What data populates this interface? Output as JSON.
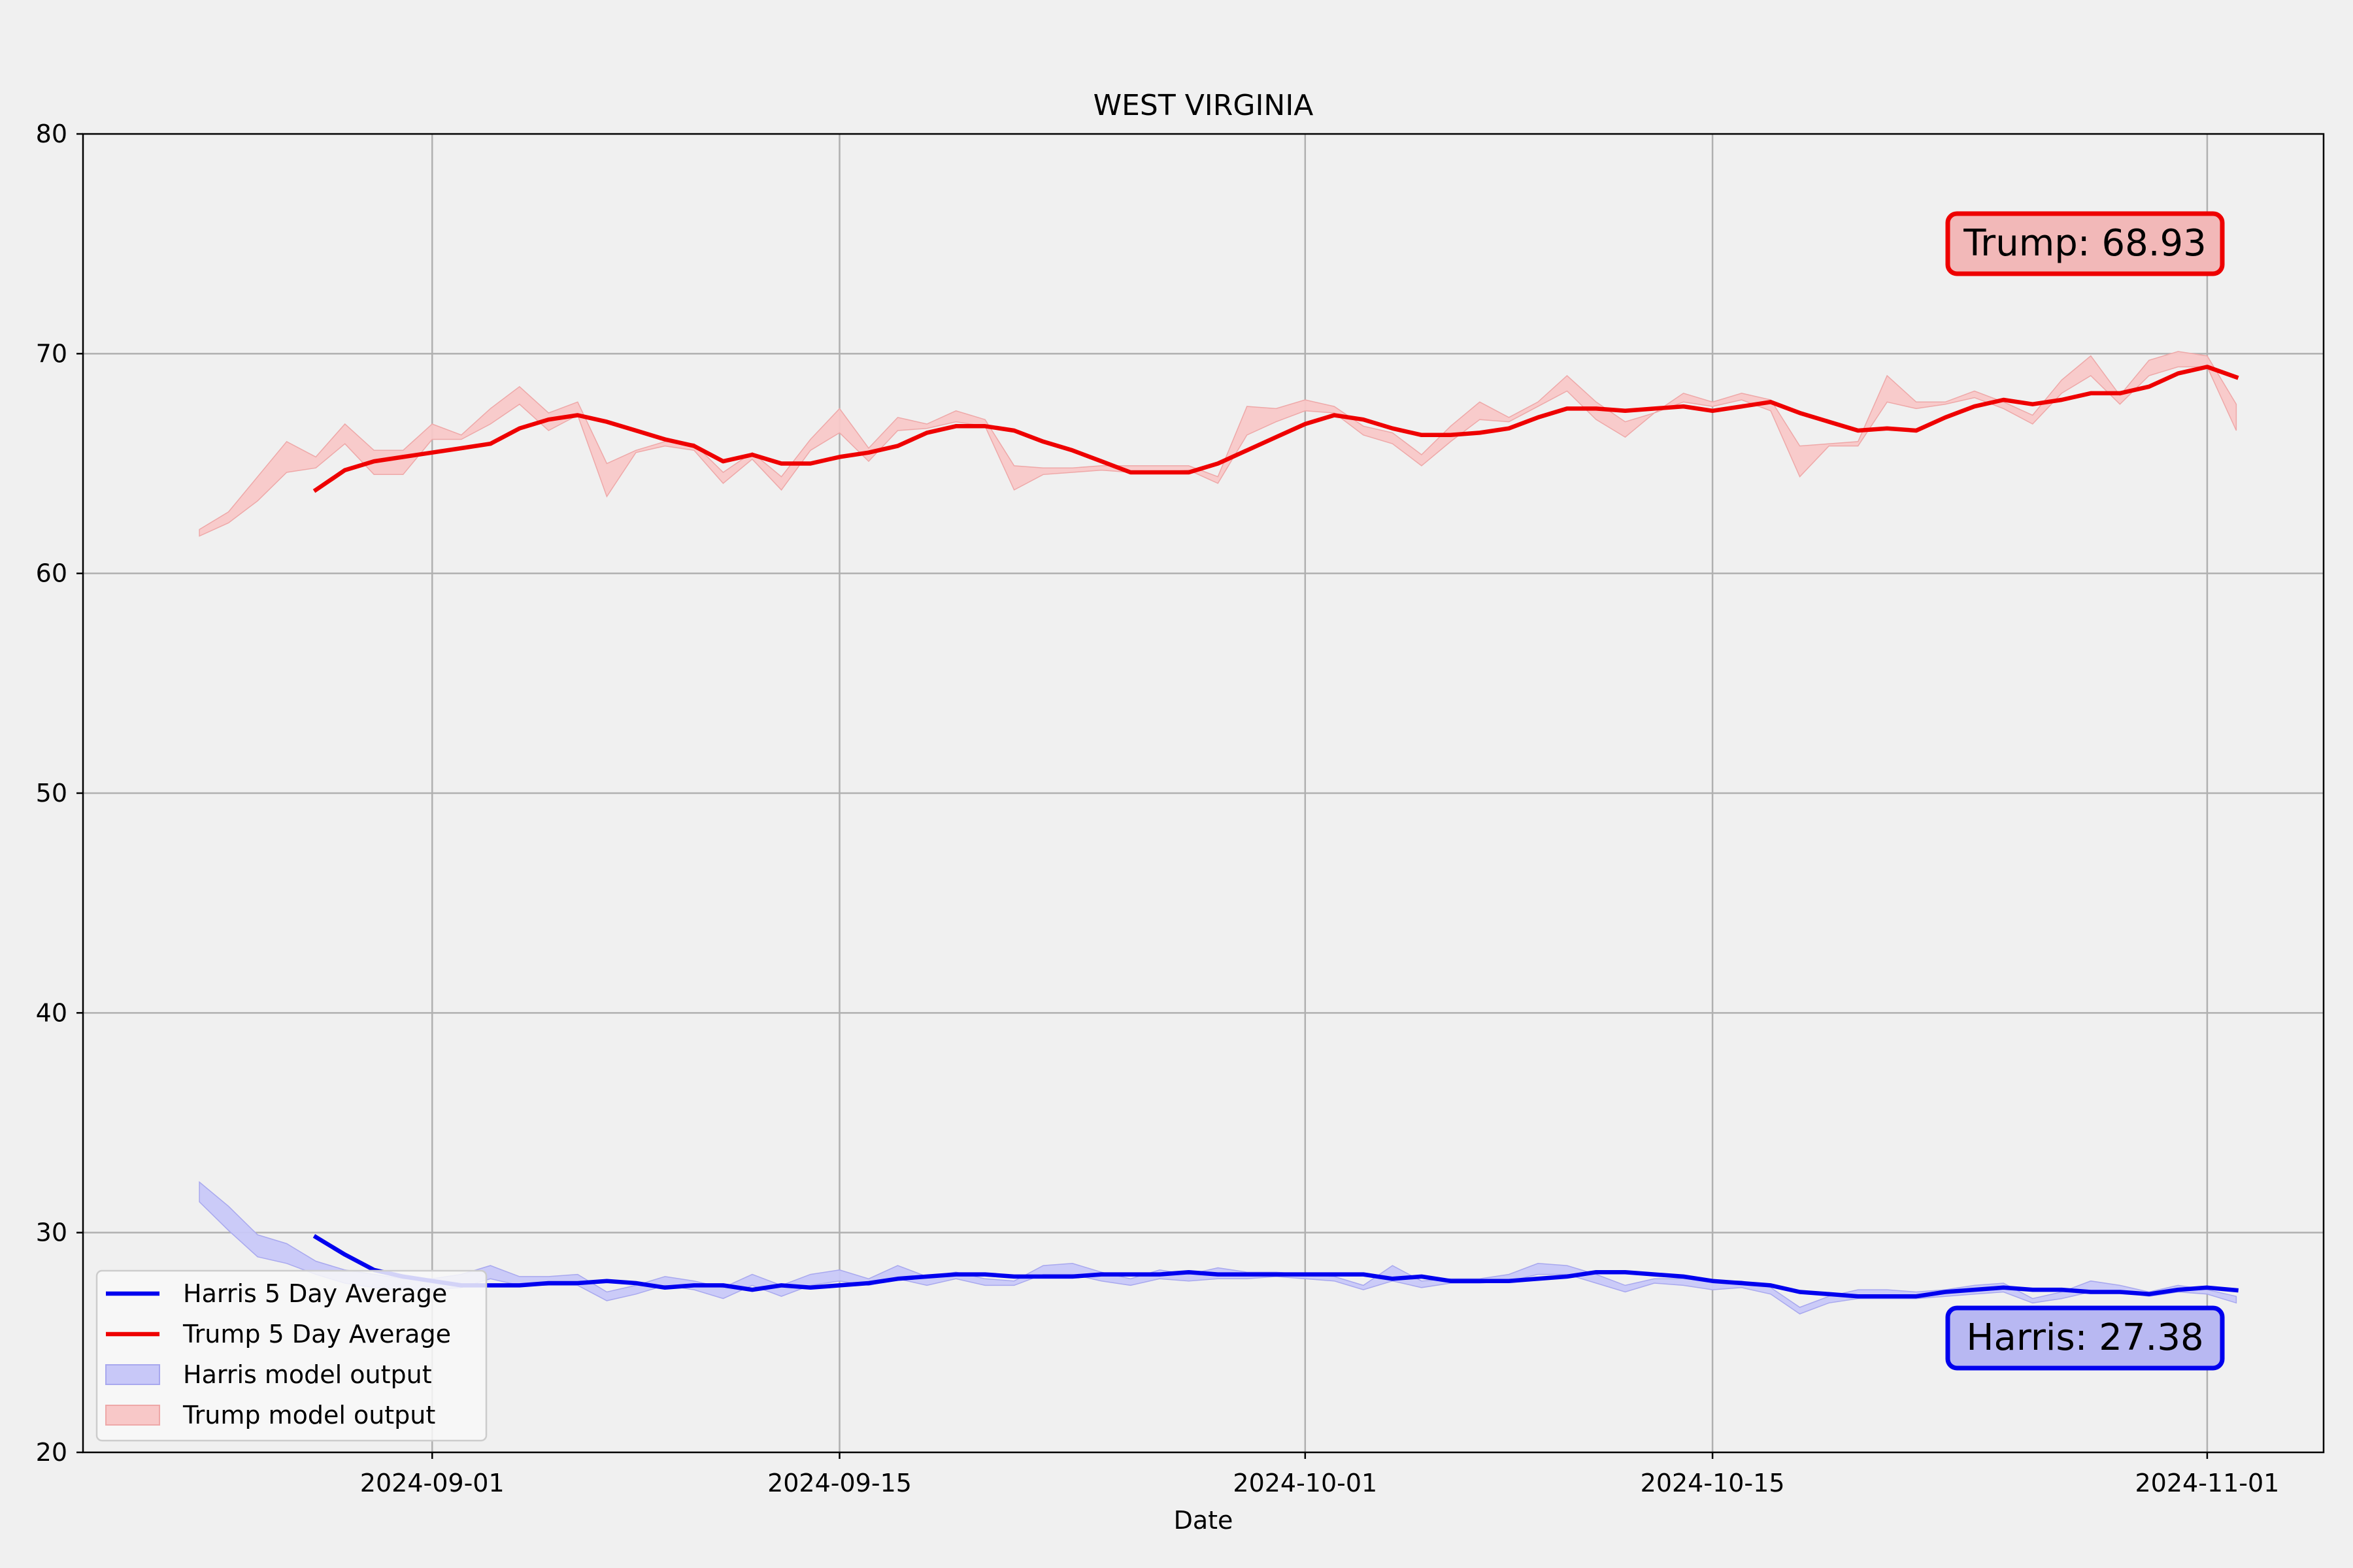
{
  "chart_data": {
    "type": "line",
    "title": "WEST VIRGINIA",
    "xlabel": "Date",
    "ylabel": "",
    "ylim": [
      20,
      80
    ],
    "xlim": [
      "2024-08-20",
      "2024-11-05"
    ],
    "x_ticks": [
      "2024-09-01",
      "2024-09-15",
      "2024-10-01",
      "2024-10-15",
      "2024-11-01"
    ],
    "y_ticks": [
      20,
      30,
      40,
      50,
      60,
      70,
      80
    ],
    "grid": true,
    "legend_position": "lower-left",
    "legend": [
      {
        "label": "Harris 5 Day Average",
        "kind": "line",
        "color": "#0000ee"
      },
      {
        "label": "Trump 5 Day Average",
        "kind": "line",
        "color": "#ee0000"
      },
      {
        "label": "Harris model output",
        "kind": "band",
        "color": "#c8c8f8"
      },
      {
        "label": "Trump model output",
        "kind": "band",
        "color": "#f8c8c8"
      }
    ],
    "annotations": [
      {
        "text": "Trump: 68.93",
        "series": "Trump 5 Day Average",
        "value": 68.93,
        "edge": "#ee0000",
        "fill": "#f2b8b8"
      },
      {
        "text": "Harris: 27.38",
        "series": "Harris 5 Day Average",
        "value": 27.38,
        "edge": "#0000ee",
        "fill": "#b8b8f2"
      }
    ],
    "series": [
      {
        "name": "Harris 5 Day Average",
        "kind": "line",
        "color": "#0000ee",
        "x": [
          "2024-08-28",
          "2024-08-29",
          "2024-08-30",
          "2024-08-31",
          "2024-09-01",
          "2024-09-02",
          "2024-09-03",
          "2024-09-04",
          "2024-09-05",
          "2024-09-06",
          "2024-09-07",
          "2024-09-08",
          "2024-09-09",
          "2024-09-10",
          "2024-09-11",
          "2024-09-12",
          "2024-09-13",
          "2024-09-14",
          "2024-09-15",
          "2024-09-16",
          "2024-09-17",
          "2024-09-18",
          "2024-09-19",
          "2024-09-20",
          "2024-09-21",
          "2024-09-22",
          "2024-09-23",
          "2024-09-24",
          "2024-09-25",
          "2024-09-26",
          "2024-09-27",
          "2024-09-28",
          "2024-09-29",
          "2024-09-30",
          "2024-10-01",
          "2024-10-02",
          "2024-10-03",
          "2024-10-04",
          "2024-10-05",
          "2024-10-06",
          "2024-10-07",
          "2024-10-08",
          "2024-10-09",
          "2024-10-10",
          "2024-10-11",
          "2024-10-12",
          "2024-10-13",
          "2024-10-14",
          "2024-10-15",
          "2024-10-16",
          "2024-10-17",
          "2024-10-18",
          "2024-10-19",
          "2024-10-20",
          "2024-10-21",
          "2024-10-22",
          "2024-10-23",
          "2024-10-24",
          "2024-10-25",
          "2024-10-26",
          "2024-10-27",
          "2024-10-28",
          "2024-10-29",
          "2024-10-30",
          "2024-10-31",
          "2024-11-01",
          "2024-11-02"
        ],
        "y": [
          29.8,
          29.0,
          28.3,
          28.0,
          27.8,
          27.6,
          27.6,
          27.6,
          27.7,
          27.7,
          27.8,
          27.7,
          27.5,
          27.6,
          27.6,
          27.4,
          27.6,
          27.5,
          27.6,
          27.7,
          27.9,
          28.0,
          28.1,
          28.1,
          28.0,
          28.0,
          28.0,
          28.1,
          28.1,
          28.1,
          28.2,
          28.1,
          28.1,
          28.1,
          28.1,
          28.1,
          28.1,
          27.9,
          28.0,
          27.8,
          27.8,
          27.8,
          27.9,
          28.0,
          28.2,
          28.2,
          28.1,
          28.0,
          27.8,
          27.7,
          27.6,
          27.3,
          27.2,
          27.1,
          27.1,
          27.1,
          27.3,
          27.4,
          27.5,
          27.4,
          27.4,
          27.3,
          27.3,
          27.2,
          27.4,
          27.5,
          27.38
        ]
      },
      {
        "name": "Trump 5 Day Average",
        "kind": "line",
        "color": "#ee0000",
        "x": [
          "2024-08-28",
          "2024-08-29",
          "2024-08-30",
          "2024-08-31",
          "2024-09-01",
          "2024-09-02",
          "2024-09-03",
          "2024-09-04",
          "2024-09-05",
          "2024-09-06",
          "2024-09-07",
          "2024-09-08",
          "2024-09-09",
          "2024-09-10",
          "2024-09-11",
          "2024-09-12",
          "2024-09-13",
          "2024-09-14",
          "2024-09-15",
          "2024-09-16",
          "2024-09-17",
          "2024-09-18",
          "2024-09-19",
          "2024-09-20",
          "2024-09-21",
          "2024-09-22",
          "2024-09-23",
          "2024-09-24",
          "2024-09-25",
          "2024-09-26",
          "2024-09-27",
          "2024-09-28",
          "2024-09-29",
          "2024-09-30",
          "2024-10-01",
          "2024-10-02",
          "2024-10-03",
          "2024-10-04",
          "2024-10-05",
          "2024-10-06",
          "2024-10-07",
          "2024-10-08",
          "2024-10-09",
          "2024-10-10",
          "2024-10-11",
          "2024-10-12",
          "2024-10-13",
          "2024-10-14",
          "2024-10-15",
          "2024-10-16",
          "2024-10-17",
          "2024-10-18",
          "2024-10-19",
          "2024-10-20",
          "2024-10-21",
          "2024-10-22",
          "2024-10-23",
          "2024-10-24",
          "2024-10-25",
          "2024-10-26",
          "2024-10-27",
          "2024-10-28",
          "2024-10-29",
          "2024-10-30",
          "2024-10-31",
          "2024-11-01",
          "2024-11-02"
        ],
        "y": [
          63.8,
          64.7,
          65.1,
          65.3,
          65.5,
          65.7,
          65.9,
          66.6,
          67.0,
          67.2,
          66.9,
          66.5,
          66.1,
          65.8,
          65.1,
          65.4,
          65.0,
          65.0,
          65.3,
          65.5,
          65.8,
          66.4,
          66.7,
          66.7,
          66.5,
          66.0,
          65.6,
          65.1,
          64.6,
          64.6,
          64.6,
          65.0,
          65.6,
          66.2,
          66.8,
          67.2,
          67.0,
          66.6,
          66.3,
          66.3,
          66.4,
          66.6,
          67.1,
          67.5,
          67.5,
          67.4,
          67.5,
          67.6,
          67.4,
          67.6,
          67.8,
          67.3,
          66.9,
          66.5,
          66.6,
          66.5,
          67.1,
          67.6,
          67.9,
          67.7,
          67.9,
          68.2,
          68.2,
          68.5,
          69.1,
          69.4,
          68.93
        ]
      },
      {
        "name": "Harris model output",
        "kind": "band",
        "color": "#c8c8f8",
        "edge": "#a8a8ee",
        "x": [
          "2024-08-24",
          "2024-08-25",
          "2024-08-26",
          "2024-08-27",
          "2024-08-28",
          "2024-08-29",
          "2024-08-30",
          "2024-08-31",
          "2024-09-01",
          "2024-09-02",
          "2024-09-03",
          "2024-09-04",
          "2024-09-05",
          "2024-09-06",
          "2024-09-07",
          "2024-09-08",
          "2024-09-09",
          "2024-09-10",
          "2024-09-11",
          "2024-09-12",
          "2024-09-13",
          "2024-09-14",
          "2024-09-15",
          "2024-09-16",
          "2024-09-17",
          "2024-09-18",
          "2024-09-19",
          "2024-09-20",
          "2024-09-21",
          "2024-09-22",
          "2024-09-23",
          "2024-09-24",
          "2024-09-25",
          "2024-09-26",
          "2024-09-27",
          "2024-09-28",
          "2024-09-29",
          "2024-09-30",
          "2024-10-01",
          "2024-10-02",
          "2024-10-03",
          "2024-10-04",
          "2024-10-05",
          "2024-10-06",
          "2024-10-07",
          "2024-10-08",
          "2024-10-09",
          "2024-10-10",
          "2024-10-11",
          "2024-10-12",
          "2024-10-13",
          "2024-10-14",
          "2024-10-15",
          "2024-10-16",
          "2024-10-17",
          "2024-10-18",
          "2024-10-19",
          "2024-10-20",
          "2024-10-21",
          "2024-10-22",
          "2024-10-23",
          "2024-10-24",
          "2024-10-25",
          "2024-10-26",
          "2024-10-27",
          "2024-10-28",
          "2024-10-29",
          "2024-10-30",
          "2024-10-31",
          "2024-11-01",
          "2024-11-02"
        ],
        "low": [
          31.4,
          30.1,
          28.9,
          28.6,
          28.1,
          27.7,
          27.5,
          27.4,
          27.4,
          27.5,
          27.9,
          27.6,
          27.6,
          27.6,
          26.9,
          27.2,
          27.6,
          27.4,
          27.0,
          27.6,
          27.1,
          27.6,
          27.8,
          27.6,
          27.9,
          27.6,
          27.9,
          27.6,
          27.6,
          28.1,
          28.1,
          27.8,
          27.6,
          27.9,
          27.8,
          27.9,
          27.9,
          28.0,
          27.9,
          27.8,
          27.4,
          27.8,
          27.5,
          27.7,
          27.7,
          27.8,
          28.1,
          28.1,
          27.7,
          27.3,
          27.7,
          27.6,
          27.4,
          27.5,
          27.2,
          26.3,
          26.8,
          27.0,
          27.0,
          27.0,
          27.1,
          27.2,
          27.3,
          26.8,
          27.0,
          27.3,
          27.3,
          27.1,
          27.3,
          27.2,
          26.8
        ],
        "high": [
          32.3,
          31.2,
          29.9,
          29.5,
          28.7,
          28.3,
          28.1,
          27.9,
          27.9,
          28.1,
          28.5,
          28.0,
          28.0,
          28.1,
          27.3,
          27.6,
          28.0,
          27.8,
          27.5,
          28.1,
          27.6,
          28.1,
          28.3,
          27.9,
          28.5,
          28.0,
          28.2,
          27.9,
          27.8,
          28.5,
          28.6,
          28.2,
          27.9,
          28.3,
          28.1,
          28.4,
          28.2,
          28.2,
          28.1,
          28.0,
          27.6,
          28.5,
          27.8,
          27.9,
          27.9,
          28.1,
          28.6,
          28.5,
          28.1,
          27.6,
          27.9,
          27.9,
          27.8,
          27.8,
          27.5,
          26.6,
          27.1,
          27.4,
          27.4,
          27.3,
          27.4,
          27.6,
          27.7,
          27.0,
          27.3,
          27.8,
          27.6,
          27.3,
          27.6,
          27.4,
          27.1
        ]
      },
      {
        "name": "Trump model output",
        "kind": "band",
        "color": "#f8c8c8",
        "edge": "#eea8a8",
        "x": [
          "2024-08-24",
          "2024-08-25",
          "2024-08-26",
          "2024-08-27",
          "2024-08-28",
          "2024-08-29",
          "2024-08-30",
          "2024-08-31",
          "2024-09-01",
          "2024-09-02",
          "2024-09-03",
          "2024-09-04",
          "2024-09-05",
          "2024-09-06",
          "2024-09-07",
          "2024-09-08",
          "2024-09-09",
          "2024-09-10",
          "2024-09-11",
          "2024-09-12",
          "2024-09-13",
          "2024-09-14",
          "2024-09-15",
          "2024-09-16",
          "2024-09-17",
          "2024-09-18",
          "2024-09-19",
          "2024-09-20",
          "2024-09-21",
          "2024-09-22",
          "2024-09-23",
          "2024-09-24",
          "2024-09-25",
          "2024-09-26",
          "2024-09-27",
          "2024-09-28",
          "2024-09-29",
          "2024-09-30",
          "2024-10-01",
          "2024-10-02",
          "2024-10-03",
          "2024-10-04",
          "2024-10-05",
          "2024-10-06",
          "2024-10-07",
          "2024-10-08",
          "2024-10-09",
          "2024-10-10",
          "2024-10-11",
          "2024-10-12",
          "2024-10-13",
          "2024-10-14",
          "2024-10-15",
          "2024-10-16",
          "2024-10-17",
          "2024-10-18",
          "2024-10-19",
          "2024-10-20",
          "2024-10-21",
          "2024-10-22",
          "2024-10-23",
          "2024-10-24",
          "2024-10-25",
          "2024-10-26",
          "2024-10-27",
          "2024-10-28",
          "2024-10-29",
          "2024-10-30",
          "2024-10-31",
          "2024-11-01",
          "2024-11-02"
        ],
        "low": [
          61.7,
          62.3,
          63.3,
          64.6,
          64.8,
          65.9,
          64.5,
          64.5,
          66.1,
          66.1,
          66.8,
          67.7,
          66.5,
          67.2,
          63.5,
          65.5,
          65.8,
          65.6,
          64.1,
          65.2,
          63.8,
          65.6,
          66.4,
          65.1,
          66.5,
          66.6,
          66.9,
          66.7,
          63.8,
          64.5,
          64.6,
          64.7,
          64.6,
          64.6,
          64.7,
          64.1,
          66.3,
          66.9,
          67.4,
          67.3,
          66.3,
          65.9,
          64.9,
          66.0,
          67.0,
          66.9,
          67.6,
          68.3,
          67.0,
          66.2,
          67.3,
          67.8,
          67.6,
          67.9,
          67.4,
          64.4,
          65.8,
          65.8,
          67.8,
          67.5,
          67.7,
          68.0,
          67.5,
          66.8,
          68.2,
          69.0,
          67.7,
          69.0,
          69.4,
          69.4,
          66.5
        ],
        "high": [
          62.0,
          62.8,
          64.4,
          66.0,
          65.3,
          66.8,
          65.6,
          65.6,
          66.8,
          66.3,
          67.5,
          68.5,
          67.3,
          67.8,
          65.0,
          65.6,
          66.0,
          65.9,
          64.6,
          65.5,
          64.4,
          66.1,
          67.5,
          65.7,
          67.1,
          66.8,
          67.4,
          67.0,
          64.9,
          64.8,
          64.8,
          64.9,
          64.9,
          64.9,
          64.9,
          64.4,
          67.6,
          67.5,
          67.9,
          67.6,
          66.7,
          66.4,
          65.4,
          66.7,
          67.8,
          67.1,
          67.8,
          69.0,
          67.8,
          66.9,
          67.3,
          68.2,
          67.8,
          68.2,
          67.9,
          65.8,
          65.9,
          66.0,
          69.0,
          67.8,
          67.8,
          68.3,
          67.8,
          67.2,
          68.8,
          69.9,
          68.1,
          69.7,
          70.1,
          69.9,
          67.7
        ]
      }
    ]
  }
}
